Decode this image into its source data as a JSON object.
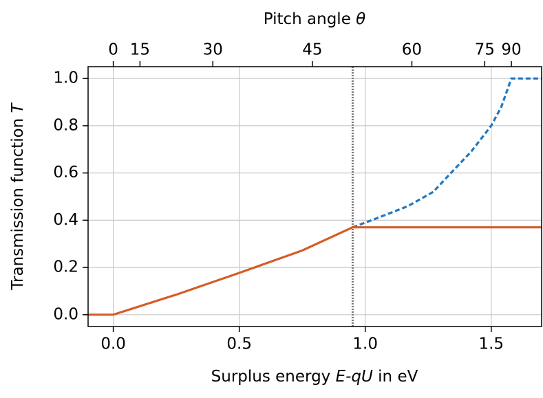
{
  "chart_data": {
    "type": "line",
    "xlabel": [
      "Surplus energy ",
      "E-qU",
      " in eV"
    ],
    "ylabel": [
      "Transmission function ",
      "T"
    ],
    "x2label": [
      "Pitch angle ",
      "θ"
    ],
    "xlim": [
      -0.1,
      1.7
    ],
    "ylim": [
      -0.05,
      1.05
    ],
    "xticks": [
      {
        "value": 0,
        "label": "0.0"
      },
      0.5,
      {
        "value": 1,
        "label": "1.0"
      },
      1.5
    ],
    "yticks": [
      {
        "value": 0,
        "label": "0.0"
      },
      0.2,
      0.4,
      0.6,
      0.8,
      {
        "value": 1,
        "label": "1.0"
      }
    ],
    "x2ticks": [
      0,
      15,
      30,
      45,
      60,
      75,
      90
    ],
    "x2_energy_max": 1.58,
    "grid": true,
    "vline": {
      "x": 0.95,
      "color": "#7a7a7a"
    },
    "series": [
      {
        "color": "#1f77c4",
        "style": "dashed",
        "x": [
          0.95,
          1.05,
          1.17,
          1.27,
          1.34,
          1.42,
          1.5,
          1.54,
          1.58,
          1.7
        ],
        "values": [
          0.37,
          0.41,
          0.46,
          0.52,
          0.6,
          0.69,
          0.8,
          0.88,
          1.0,
          1.0
        ]
      },
      {
        "color": "#d45d27",
        "style": "solid",
        "x": [
          -0.1,
          0,
          0.25,
          0.5,
          0.75,
          0.95,
          1.7
        ],
        "values": [
          0,
          0,
          0.085,
          0.177,
          0.272,
          0.37,
          0.37
        ]
      }
    ]
  }
}
